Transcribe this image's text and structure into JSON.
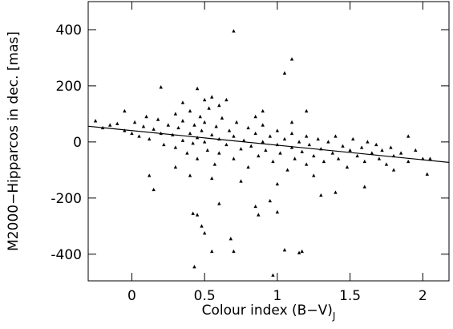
{
  "chart_data": {
    "type": "scatter",
    "xlabel": "Colour index (B−V)",
    "xlabel_sub": "J",
    "ylabel": "M2000−Hipparcos in dec. [mas]",
    "xlim": [
      -0.3,
      2.18
    ],
    "ylim": [
      -495,
      500
    ],
    "xticks": [
      0,
      0.5,
      1,
      1.5,
      2
    ],
    "yticks": [
      -400,
      -200,
      0,
      200,
      400
    ],
    "color": "#000000",
    "series": [
      {
        "type": "scatter",
        "x": [
          0.7,
          1.1,
          1.05,
          0.2,
          0.45,
          0.55,
          0.5,
          0.42,
          0.45,
          0.48,
          0.5,
          0.55,
          0.43,
          0.68,
          0.7,
          1.05,
          1.15,
          1.17,
          0.97,
          0.85,
          0.87,
          1.0,
          0.95,
          0.15,
          0.12,
          0.6,
          1.6,
          1.4,
          1.8,
          2.03,
          1.3,
          0.35,
          0.65,
          1.2,
          0.9,
          -0.05,
          -0.25,
          -0.15,
          1.9,
          2.05,
          -0.2,
          -0.1,
          -0.05,
          0,
          0.02,
          0.05,
          0.08,
          0.1,
          0.12,
          0.15,
          0.18,
          0.2,
          0.22,
          0.25,
          0.28,
          0.3,
          0.3,
          0.32,
          0.35,
          0.35,
          0.38,
          0.4,
          0.4,
          0.42,
          0.43,
          0.45,
          0.45,
          0.47,
          0.48,
          0.5,
          0.5,
          0.52,
          0.53,
          0.55,
          0.57,
          0.58,
          0.6,
          0.6,
          0.62,
          0.65,
          0.67,
          0.7,
          0.7,
          0.72,
          0.75,
          0.77,
          0.8,
          0.8,
          0.82,
          0.85,
          0.87,
          0.9,
          0.9,
          0.92,
          0.95,
          0.97,
          1.0,
          1.0,
          1.02,
          1.05,
          1.07,
          1.1,
          1.1,
          1.12,
          1.15,
          1.17,
          1.2,
          1.2,
          1.22,
          1.25,
          1.28,
          1.3,
          1.32,
          1.35,
          1.38,
          1.4,
          1.42,
          1.45,
          1.48,
          1.5,
          1.52,
          1.55,
          1.58,
          1.6,
          1.62,
          1.65,
          1.68,
          1.7,
          1.72,
          1.75,
          1.78,
          1.8,
          1.85,
          1.9,
          1.95,
          2.0,
          0.4,
          0.55,
          0.75,
          1.0,
          0.3,
          1.25,
          0.6,
          0.85,
          1.1
        ],
        "values": [
          395,
          295,
          245,
          195,
          190,
          160,
          150,
          -255,
          -260,
          -300,
          -325,
          -390,
          -445,
          -345,
          -390,
          -385,
          -395,
          -390,
          -475,
          -230,
          -260,
          -250,
          -210,
          -170,
          -120,
          -220,
          -160,
          -180,
          -100,
          -115,
          -190,
          140,
          150,
          110,
          110,
          110,
          75,
          60,
          20,
          -60,
          50,
          65,
          40,
          30,
          70,
          20,
          55,
          90,
          10,
          45,
          80,
          30,
          -10,
          60,
          25,
          100,
          -20,
          50,
          5,
          75,
          -40,
          30,
          110,
          -5,
          60,
          15,
          -60,
          90,
          40,
          0,
          70,
          -30,
          120,
          25,
          -80,
          55,
          10,
          -40,
          85,
          -10,
          40,
          -60,
          20,
          70,
          -25,
          5,
          50,
          -90,
          -15,
          30,
          -50,
          0,
          60,
          -30,
          20,
          -70,
          -10,
          40,
          -40,
          10,
          -100,
          -20,
          30,
          -60,
          0,
          -35,
          20,
          -80,
          -10,
          -50,
          10,
          -25,
          -70,
          0,
          -40,
          20,
          -60,
          -15,
          -90,
          -30,
          10,
          -50,
          -20,
          -70,
          0,
          -40,
          -10,
          -60,
          -30,
          -80,
          -20,
          -50,
          -40,
          -70,
          -30,
          -60,
          -120,
          -130,
          -140,
          -150,
          -90,
          -120,
          130,
          90,
          70
        ]
      },
      {
        "type": "line",
        "x": [
          -0.3,
          2.18
        ],
        "values": [
          56,
          -73
        ]
      }
    ]
  }
}
